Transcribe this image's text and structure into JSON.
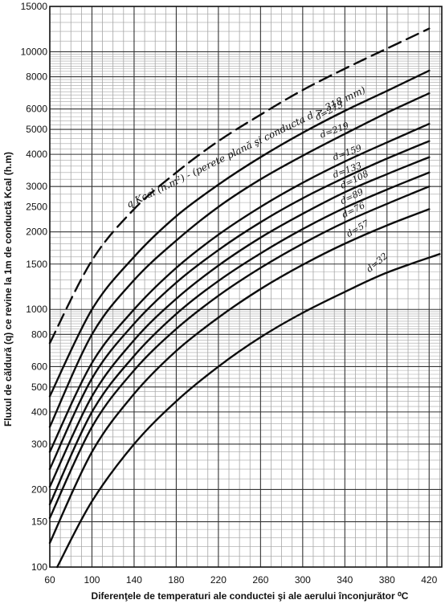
{
  "chart_data": {
    "type": "line",
    "y_scale": "log",
    "grid": true,
    "ylabel": "Fluxul de căldură (q) ce revine la 1m de conductă Kcal (h.m)",
    "xlabel": "Diferenţele de temperaturi ale conductei şi ale aerului înconjurător ⁰C",
    "xlim": [
      60,
      432
    ],
    "ylim": [
      100,
      15000
    ],
    "x_ticks": [
      "60",
      "100",
      "140",
      "180",
      "220",
      "260",
      "300",
      "340",
      "380",
      "420"
    ],
    "y_ticks": [
      "100",
      "150",
      "200",
      "300",
      "400",
      "500",
      "600",
      "800",
      "1000",
      "1500",
      "2000",
      "2500",
      "3000",
      "4000",
      "5000",
      "6000",
      "8000",
      "10000",
      "15000"
    ],
    "series": [
      {
        "name": "q Kcal (h.m²) - (perete plană şi conducta d > 318 mm)",
        "style": "dashed",
        "points": [
          [
            60,
            740
          ],
          [
            100,
            1550
          ],
          [
            140,
            2450
          ],
          [
            180,
            3400
          ],
          [
            220,
            4500
          ],
          [
            260,
            5700
          ],
          [
            300,
            7100
          ],
          [
            340,
            8600
          ],
          [
            380,
            10300
          ],
          [
            420,
            12300
          ]
        ]
      },
      {
        "name": "d=273",
        "points": [
          [
            60,
            460
          ],
          [
            100,
            1000
          ],
          [
            140,
            1600
          ],
          [
            180,
            2300
          ],
          [
            220,
            3050
          ],
          [
            260,
            3900
          ],
          [
            300,
            4850
          ],
          [
            340,
            5900
          ],
          [
            380,
            7050
          ],
          [
            420,
            8450
          ]
        ]
      },
      {
        "name": "d=219",
        "points": [
          [
            60,
            350
          ],
          [
            100,
            800
          ],
          [
            140,
            1300
          ],
          [
            180,
            1850
          ],
          [
            220,
            2500
          ],
          [
            260,
            3200
          ],
          [
            300,
            3950
          ],
          [
            340,
            4800
          ],
          [
            380,
            5800
          ],
          [
            420,
            6900
          ]
        ]
      },
      {
        "name": "d=159",
        "points": [
          [
            60,
            280
          ],
          [
            100,
            620
          ],
          [
            140,
            1000
          ],
          [
            180,
            1450
          ],
          [
            220,
            1950
          ],
          [
            260,
            2500
          ],
          [
            300,
            3100
          ],
          [
            340,
            3750
          ],
          [
            380,
            4450
          ],
          [
            420,
            5250
          ]
        ]
      },
      {
        "name": "d=133",
        "points": [
          [
            60,
            240
          ],
          [
            100,
            540
          ],
          [
            140,
            880
          ],
          [
            180,
            1270
          ],
          [
            220,
            1700
          ],
          [
            260,
            2180
          ],
          [
            300,
            2700
          ],
          [
            340,
            3250
          ],
          [
            380,
            3850
          ],
          [
            420,
            4500
          ]
        ]
      },
      {
        "name": "d=108",
        "points": [
          [
            60,
            205
          ],
          [
            100,
            460
          ],
          [
            140,
            760
          ],
          [
            180,
            1100
          ],
          [
            220,
            1480
          ],
          [
            260,
            1900
          ],
          [
            300,
            2350
          ],
          [
            340,
            2850
          ],
          [
            380,
            3350
          ],
          [
            420,
            3900
          ]
        ]
      },
      {
        "name": "d=89",
        "points": [
          [
            60,
            175
          ],
          [
            100,
            400
          ],
          [
            140,
            660
          ],
          [
            180,
            960
          ],
          [
            220,
            1290
          ],
          [
            260,
            1650
          ],
          [
            300,
            2050
          ],
          [
            340,
            2480
          ],
          [
            380,
            2920
          ],
          [
            420,
            3400
          ]
        ]
      },
      {
        "name": "d=76",
        "points": [
          [
            60,
            155
          ],
          [
            100,
            350
          ],
          [
            140,
            580
          ],
          [
            180,
            840
          ],
          [
            220,
            1130
          ],
          [
            260,
            1450
          ],
          [
            300,
            1800
          ],
          [
            340,
            2180
          ],
          [
            380,
            2570
          ],
          [
            420,
            3000
          ]
        ]
      },
      {
        "name": "d=57",
        "points": [
          [
            60,
            124
          ],
          [
            100,
            280
          ],
          [
            140,
            470
          ],
          [
            180,
            690
          ],
          [
            220,
            930
          ],
          [
            260,
            1200
          ],
          [
            300,
            1490
          ],
          [
            340,
            1800
          ],
          [
            380,
            2120
          ],
          [
            420,
            2450
          ]
        ]
      },
      {
        "name": "d=32",
        "points": [
          [
            67,
            100
          ],
          [
            100,
            180
          ],
          [
            140,
            300
          ],
          [
            180,
            440
          ],
          [
            220,
            600
          ],
          [
            260,
            780
          ],
          [
            300,
            970
          ],
          [
            340,
            1170
          ],
          [
            380,
            1390
          ],
          [
            430,
            1640
          ]
        ]
      }
    ]
  }
}
